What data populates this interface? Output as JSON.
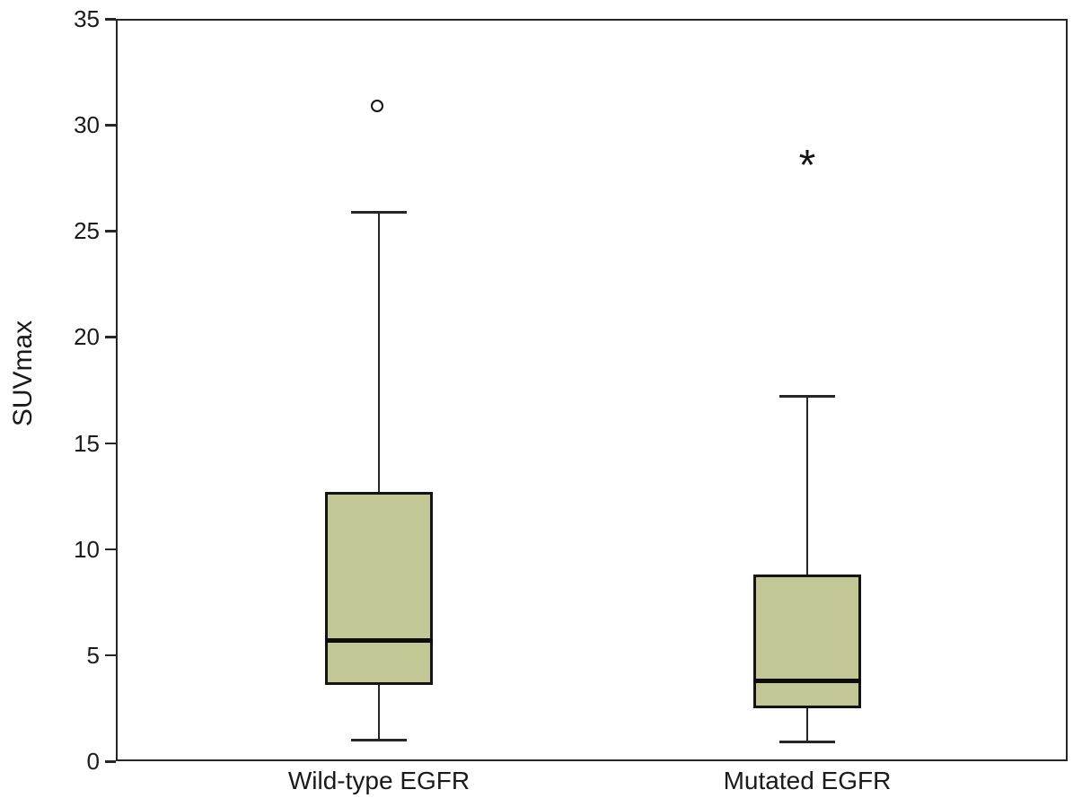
{
  "chart_data": {
    "type": "boxplot",
    "title": "",
    "xlabel": "",
    "ylabel": "SUVmax",
    "ylim": [
      0,
      35
    ],
    "yticks": [
      0,
      5,
      10,
      15,
      20,
      25,
      30,
      35
    ],
    "grid": false,
    "legend": "none",
    "categories": [
      "Wild-type EGFR",
      "Mutated EGFR"
    ],
    "series": [
      {
        "name": "Wild-type EGFR",
        "whisker_low": 1.0,
        "q1": 3.6,
        "median": 5.7,
        "q3": 12.7,
        "whisker_high": 25.9,
        "outliers": [
          {
            "value": 30.9,
            "marker": "circle",
            "meaning": "outlier"
          }
        ]
      },
      {
        "name": "Mutated EGFR",
        "whisker_low": 0.9,
        "q1": 2.5,
        "median": 3.8,
        "q3": 8.8,
        "whisker_high": 17.2,
        "outliers": [
          {
            "value": 28.4,
            "marker": "asterisk",
            "meaning": "extreme outlier"
          }
        ]
      }
    ],
    "colors": {
      "box_fill": "#c3c795",
      "line": "#262626",
      "median": "#0d0d0d",
      "background": "#ffffff"
    }
  }
}
